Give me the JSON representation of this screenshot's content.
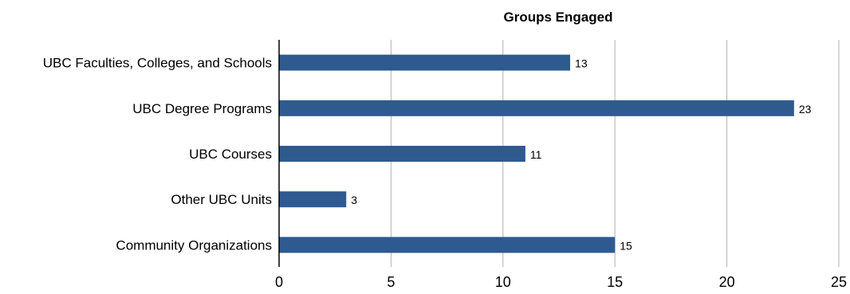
{
  "chart_data": {
    "type": "bar",
    "orientation": "horizontal",
    "title": "Groups Engaged",
    "xlabel": "",
    "ylabel": "",
    "categories": [
      "UBC Faculties, Colleges, and Schools",
      "UBC Degree Programs",
      "UBC Courses",
      "Other UBC Units",
      "Community Organizations"
    ],
    "values": [
      13,
      23,
      11,
      3,
      15
    ],
    "xlim": [
      0,
      25
    ],
    "xticks": [
      0,
      5,
      10,
      15,
      20,
      25
    ],
    "grid": true,
    "legend": "none",
    "bar_color": "#2f5a8f",
    "grid_color": "#b3b3b3",
    "axis_color": "#000000"
  }
}
